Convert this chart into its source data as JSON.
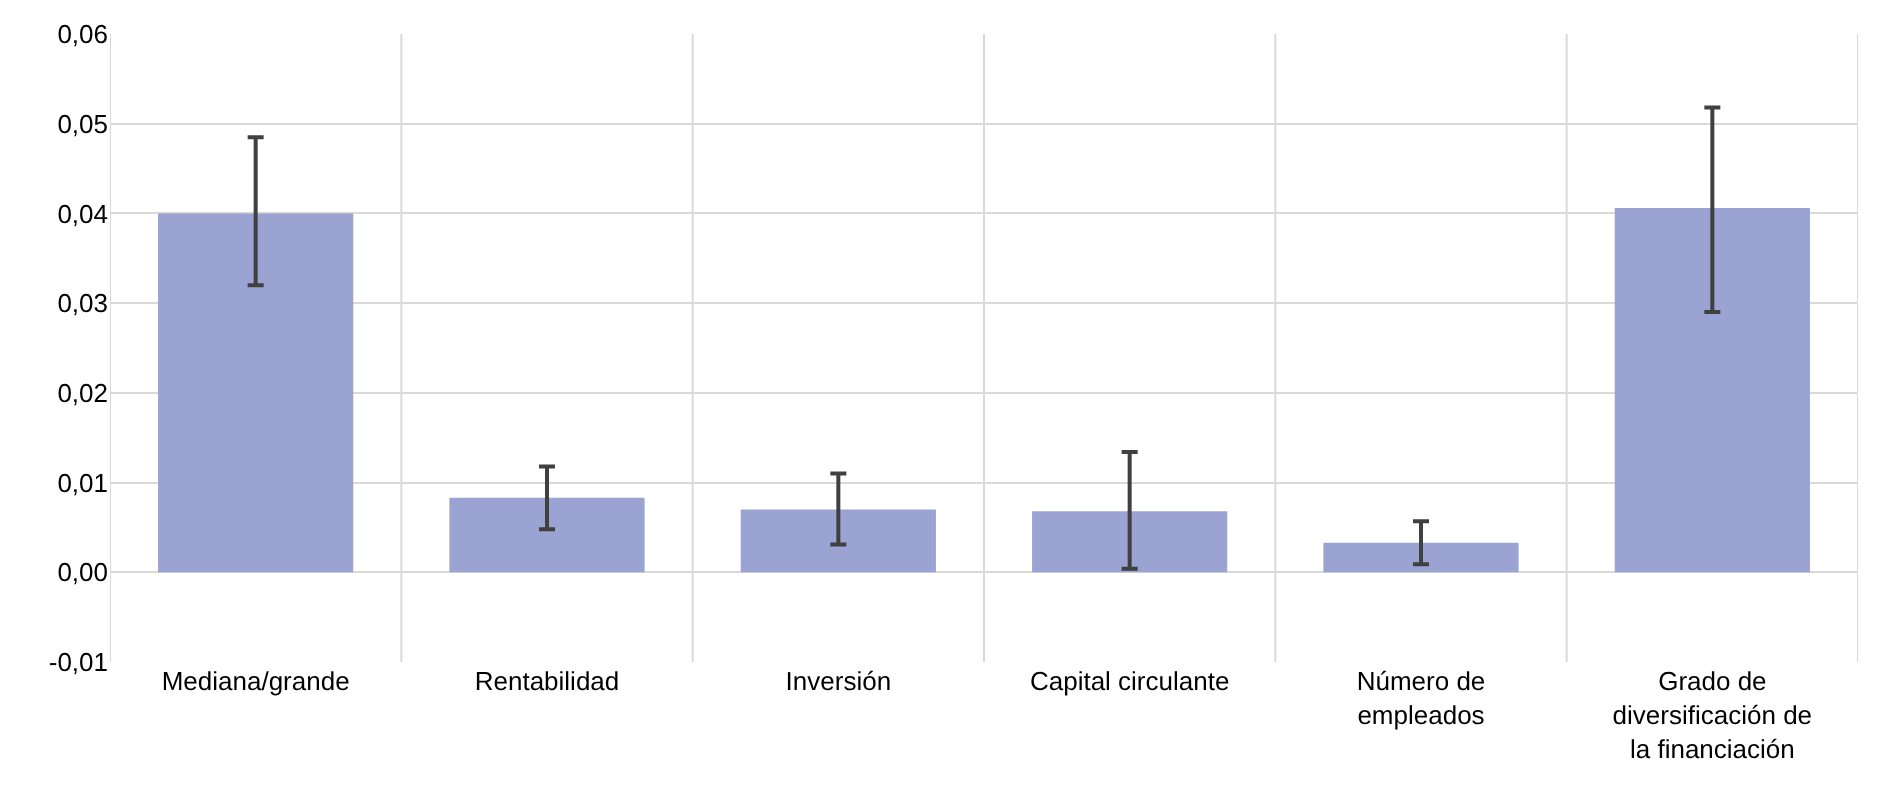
{
  "chart_data": {
    "type": "bar",
    "categories": [
      "Mediana/grande",
      "Rentabilidad",
      "Inversión",
      "Capital circulante",
      "Número de empleados",
      "Grado de diversificación de la financiación"
    ],
    "values": [
      0.04,
      0.0083,
      0.007,
      0.0068,
      0.0033,
      0.0406
    ],
    "errors": [
      [
        0.032,
        0.0485
      ],
      [
        0.0048,
        0.0118
      ],
      [
        0.0031,
        0.011
      ],
      [
        0.0004,
        0.0134
      ],
      [
        0.0009,
        0.0057
      ],
      [
        0.029,
        0.0518
      ]
    ],
    "color": "#9aa3d2",
    "ylim": [
      -0.01,
      0.06
    ],
    "yticks": [
      {
        "value": -0.01,
        "label": "-0,01"
      },
      {
        "value": 0,
        "label": "0,00"
      },
      {
        "value": 0.01,
        "label": "0,01"
      },
      {
        "value": 0.02,
        "label": "0,02"
      },
      {
        "value": 0.03,
        "label": "0,03"
      },
      {
        "value": 0.04,
        "label": "0,04"
      },
      {
        "value": 0.05,
        "label": "0,05"
      },
      {
        "value": 0.06,
        "label": "0,06"
      }
    ],
    "grid": true
  }
}
